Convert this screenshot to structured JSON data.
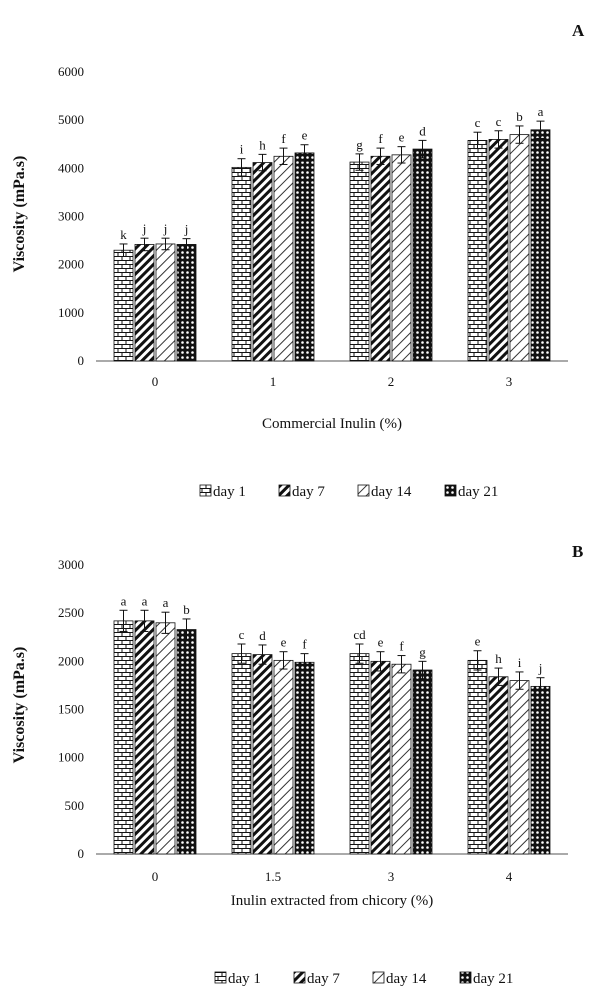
{
  "chart_data": [
    {
      "type": "bar",
      "panel_label": "A",
      "xlabel": "Commercial Inulin (%)",
      "ylabel": "Viscosity (mPa.s)",
      "ylim": [
        0,
        6000
      ],
      "yticks": [
        0,
        1000,
        2000,
        3000,
        4000,
        5000,
        6000
      ],
      "categories": [
        "0",
        "1",
        "2",
        "3"
      ],
      "legend_position": "bottom",
      "series": [
        {
          "name": "day 1",
          "pattern": "brick",
          "values": [
            2300,
            4020,
            4130,
            4580
          ],
          "errors": [
            130,
            180,
            170,
            170
          ],
          "letters": [
            "k",
            "i",
            "g",
            "c"
          ]
        },
        {
          "name": "day 7",
          "pattern": "diagonal",
          "values": [
            2420,
            4120,
            4250,
            4600
          ],
          "errors": [
            130,
            170,
            170,
            180
          ],
          "letters": [
            "j",
            "h",
            "f",
            "c"
          ]
        },
        {
          "name": "day 14",
          "pattern": "light-diagonal",
          "values": [
            2430,
            4250,
            4280,
            4700
          ],
          "errors": [
            120,
            170,
            170,
            180
          ],
          "letters": [
            "j",
            "f",
            "e",
            "b"
          ]
        },
        {
          "name": "day 21",
          "pattern": "dots",
          "values": [
            2420,
            4320,
            4400,
            4800
          ],
          "errors": [
            120,
            170,
            180,
            180
          ],
          "letters": [
            "j",
            "e",
            "d",
            "a"
          ]
        }
      ]
    },
    {
      "type": "bar",
      "panel_label": "B",
      "xlabel": "Inulin extracted from chicory (%)",
      "ylabel": "Viscosity (mPa.s)",
      "ylim": [
        0,
        3000
      ],
      "yticks": [
        0,
        500,
        1000,
        1500,
        2000,
        2500,
        3000
      ],
      "categories": [
        "0",
        "1.5",
        "3",
        "4"
      ],
      "legend_position": "bottom",
      "series": [
        {
          "name": "day 1",
          "pattern": "brick",
          "values": [
            2420,
            2080,
            2080,
            2010
          ],
          "errors": [
            110,
            100,
            100,
            100
          ],
          "letters": [
            "a",
            "c",
            "cd",
            "e"
          ]
        },
        {
          "name": "day 7",
          "pattern": "diagonal",
          "values": [
            2420,
            2070,
            2000,
            1840
          ],
          "errors": [
            110,
            100,
            100,
            90
          ],
          "letters": [
            "a",
            "d",
            "e",
            "h"
          ]
        },
        {
          "name": "day 14",
          "pattern": "light-diagonal",
          "values": [
            2400,
            2010,
            1970,
            1800
          ],
          "errors": [
            110,
            90,
            90,
            90
          ],
          "letters": [
            "a",
            "e",
            "f",
            "i"
          ]
        },
        {
          "name": "day 21",
          "pattern": "dots",
          "values": [
            2330,
            1990,
            1910,
            1740
          ],
          "errors": [
            110,
            90,
            90,
            90
          ],
          "letters": [
            "b",
            "f",
            "g",
            "j"
          ]
        }
      ]
    }
  ]
}
